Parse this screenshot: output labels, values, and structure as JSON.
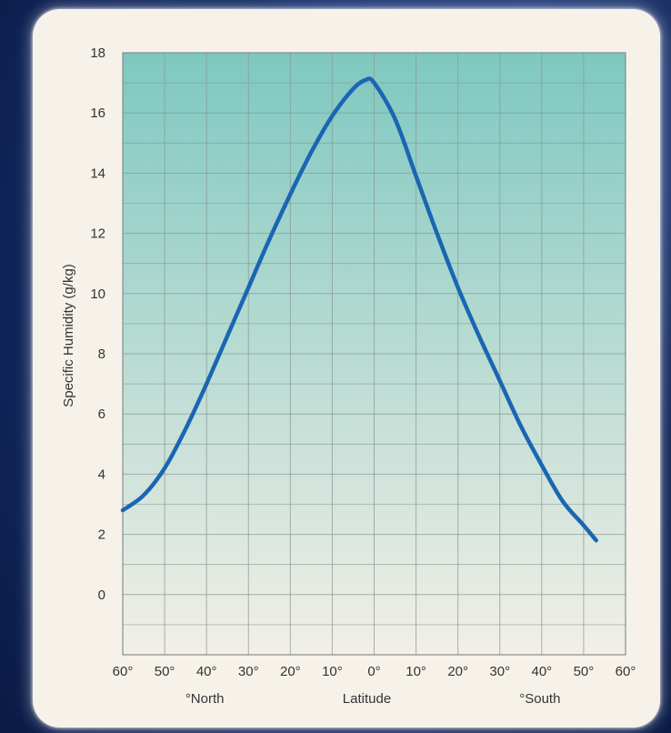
{
  "chart_data": {
    "type": "line",
    "title": "",
    "ylabel": "Specific Humidity (g/kg)",
    "xlabel": "Latitude",
    "xlabel_north": "°North",
    "xlabel_south": "°South",
    "ylim": [
      -2,
      18
    ],
    "yticks": [
      0,
      2,
      4,
      6,
      8,
      10,
      12,
      14,
      16,
      18
    ],
    "xlim": [
      60,
      -60
    ],
    "x_tick_values": [
      60,
      50,
      40,
      30,
      20,
      10,
      0,
      -10,
      -20,
      -30,
      -40,
      -50,
      -60
    ],
    "x_tick_labels": [
      "60°",
      "50°",
      "40°",
      "30°",
      "20°",
      "10°",
      "0°",
      "10°",
      "20°",
      "30°",
      "40°",
      "50°",
      "60°"
    ],
    "grid": true,
    "colors": {
      "line": "#1a66b3",
      "plot_top": "#7ec8c0",
      "plot_bottom": "#f3efe6",
      "grid": "#8a9a98",
      "card": "#f6f2ea"
    },
    "series": [
      {
        "x": [
          60,
          55,
          50,
          45,
          40,
          35,
          30,
          25,
          20,
          15,
          10,
          5,
          2,
          0,
          -5,
          -10,
          -15,
          -20,
          -25,
          -30,
          -35,
          -40,
          -45,
          -50,
          -53
        ],
        "y": [
          2.8,
          3.3,
          4.2,
          5.5,
          7.0,
          8.6,
          10.2,
          11.8,
          13.3,
          14.7,
          15.9,
          16.8,
          17.1,
          17.0,
          15.8,
          13.9,
          12.0,
          10.2,
          8.6,
          7.1,
          5.6,
          4.3,
          3.1,
          2.3,
          1.8
        ]
      }
    ]
  }
}
